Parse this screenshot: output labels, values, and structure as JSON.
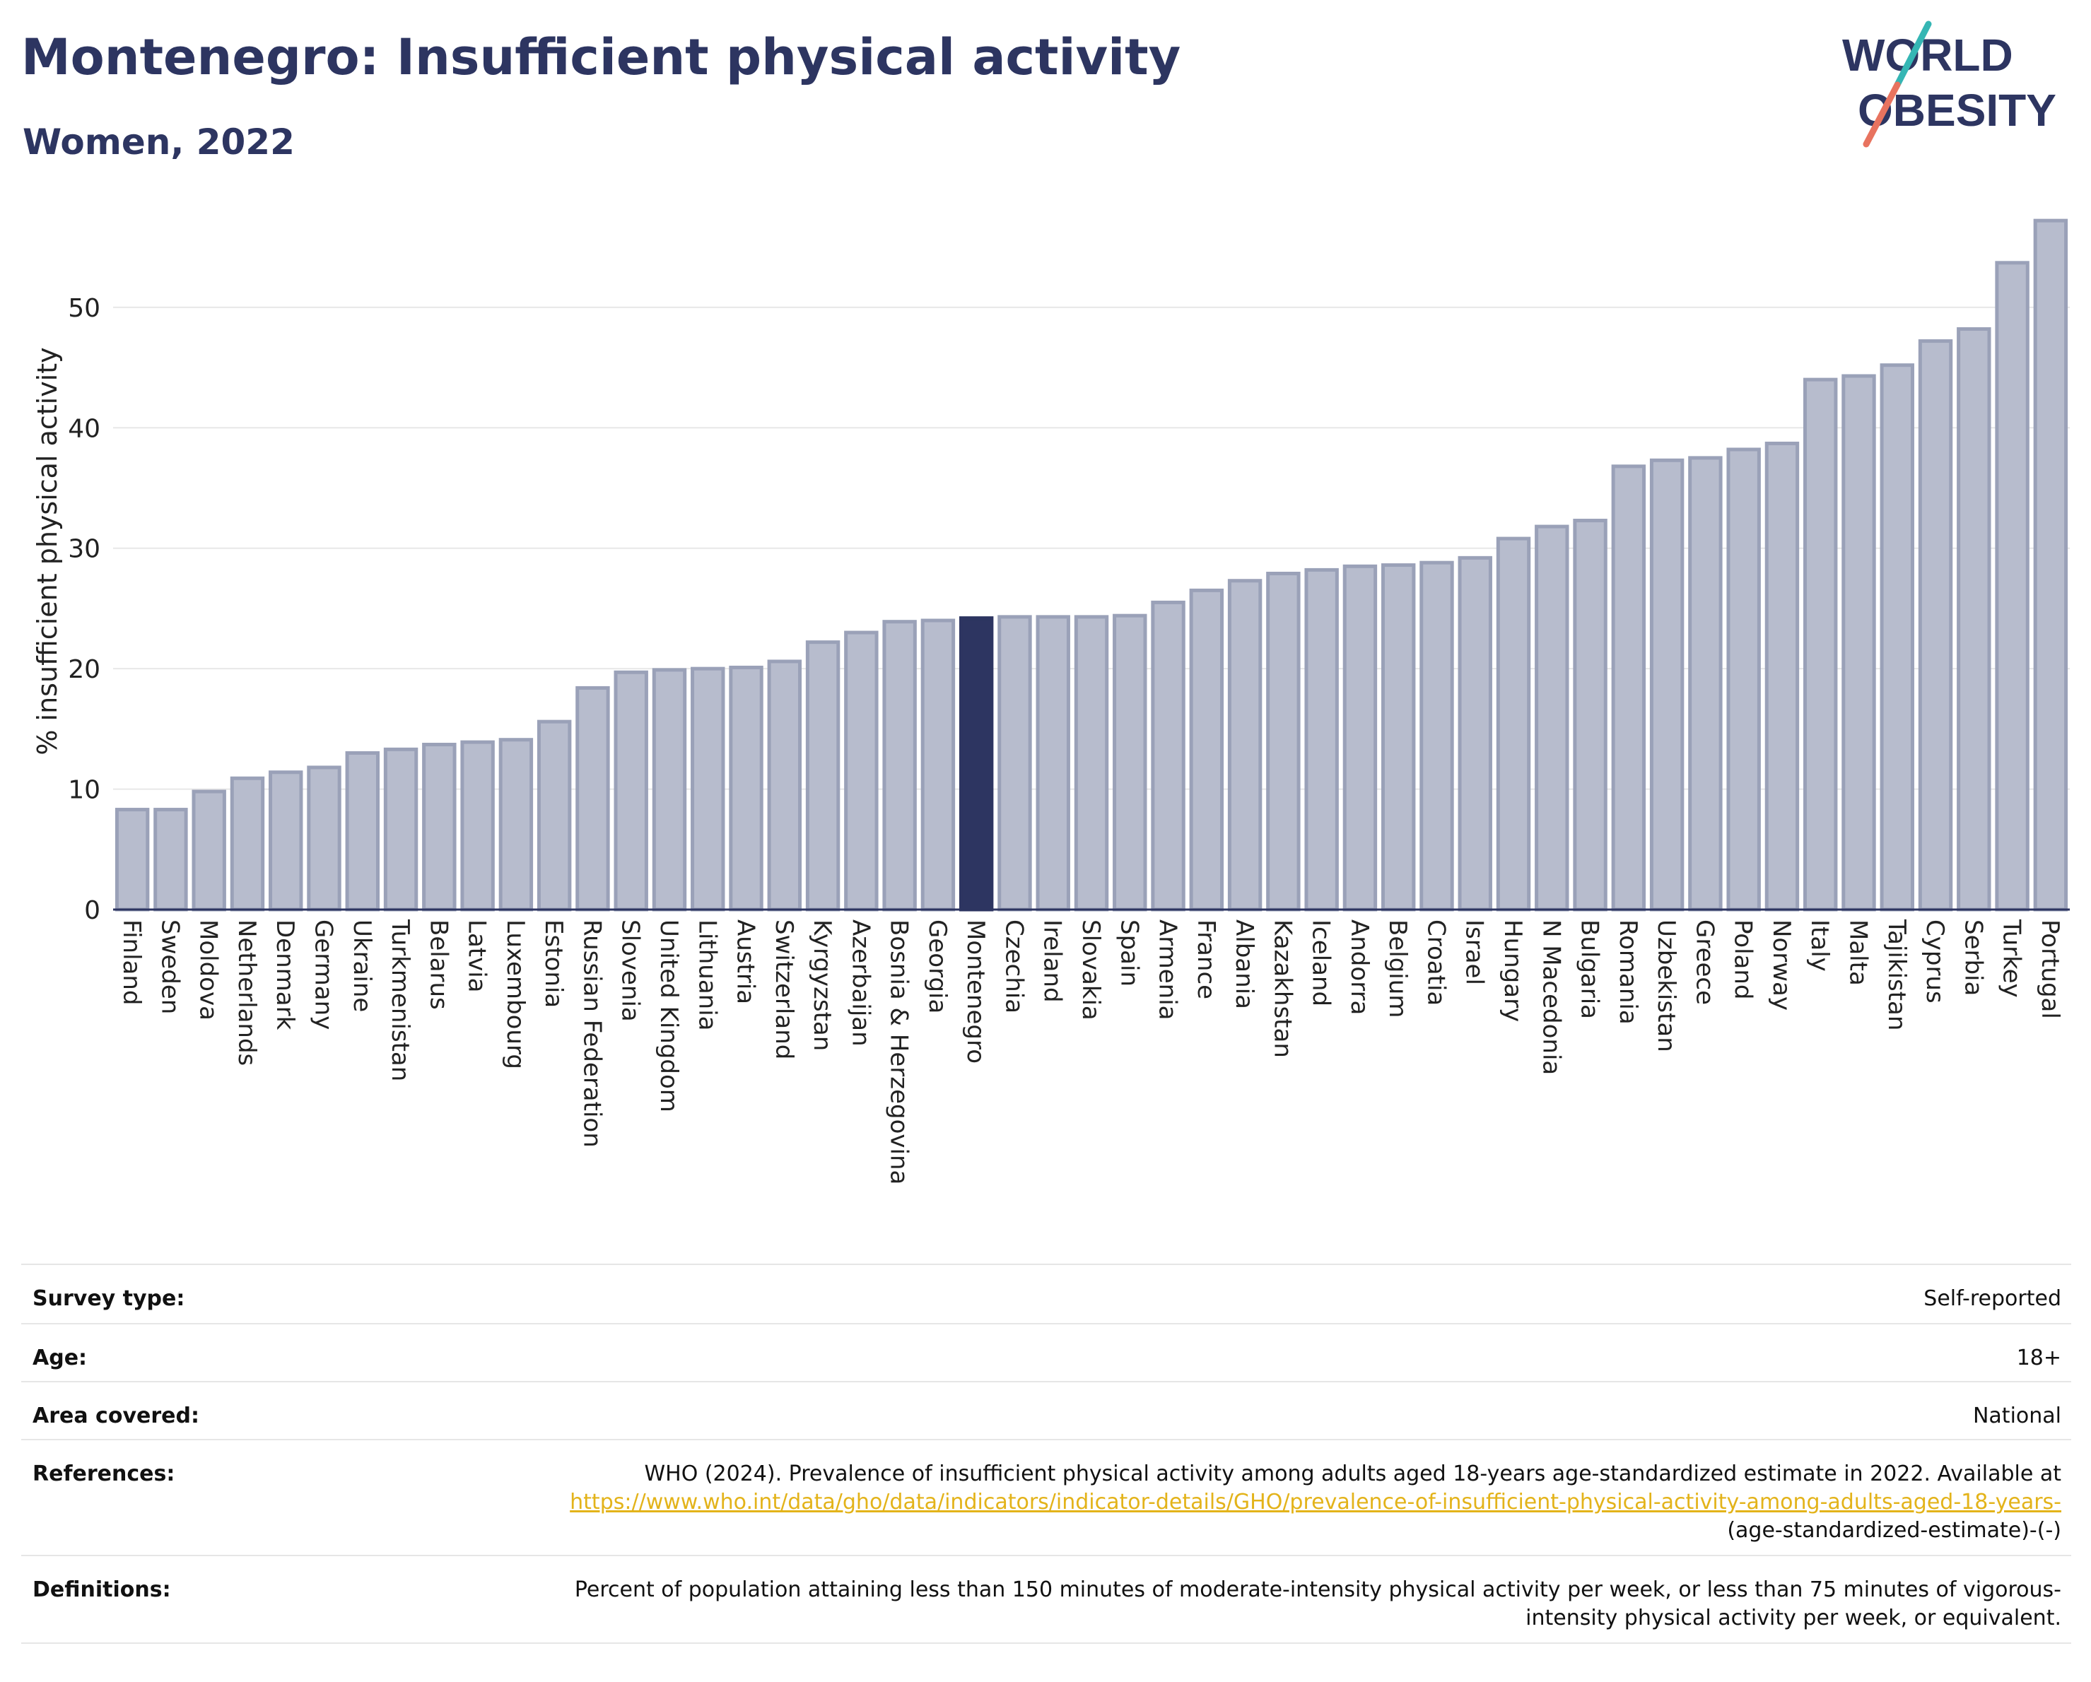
{
  "header": {
    "title": "Montenegro: Insufficient physical activity",
    "subtitle": "Women, 2022"
  },
  "logo": {
    "line1": "WORLD",
    "line2": "OBESITY"
  },
  "chart_data": {
    "type": "bar",
    "ylabel": "% insufficient physical activity",
    "xlabel": "",
    "ylim": [
      0,
      58.5
    ],
    "yticks": [
      0,
      10,
      20,
      30,
      40,
      50
    ],
    "grid": true,
    "highlight": "Montenegro",
    "colors": {
      "bar": "#b7bccd",
      "bar_edge": "#9aa1b8",
      "highlight": "#2d3561",
      "grid": "#e8e8e8",
      "axis": "#2d3561"
    },
    "categories": [
      "Finland",
      "Sweden",
      "Moldova",
      "Netherlands",
      "Denmark",
      "Germany",
      "Ukraine",
      "Turkmenistan",
      "Belarus",
      "Latvia",
      "Luxembourg",
      "Estonia",
      "Russian Federation",
      "Slovenia",
      "United Kingdom",
      "Lithuania",
      "Austria",
      "Switzerland",
      "Kyrgyzstan",
      "Azerbaijan",
      "Bosnia & Herzegovina",
      "Georgia",
      "Montenegro",
      "Czechia",
      "Ireland",
      "Slovakia",
      "Spain",
      "Armenia",
      "France",
      "Albania",
      "Kazakhstan",
      "Iceland",
      "Andorra",
      "Belgium",
      "Croatia",
      "Israel",
      "Hungary",
      "N Macedonia",
      "Bulgaria",
      "Romania",
      "Uzbekistan",
      "Greece",
      "Poland",
      "Norway",
      "Italy",
      "Malta",
      "Tajikistan",
      "Cyprus",
      "Serbia",
      "Turkey",
      "Portugal"
    ],
    "values": [
      8.3,
      8.3,
      9.8,
      10.9,
      11.4,
      11.8,
      13.0,
      13.3,
      13.7,
      13.9,
      14.1,
      15.6,
      18.4,
      19.7,
      19.9,
      20.0,
      20.1,
      20.6,
      22.2,
      23.0,
      23.9,
      24.0,
      24.2,
      24.3,
      24.3,
      24.3,
      24.4,
      25.5,
      26.5,
      27.3,
      27.9,
      28.2,
      28.5,
      28.6,
      28.8,
      29.2,
      30.8,
      31.8,
      32.3,
      36.8,
      37.3,
      37.5,
      38.2,
      38.7,
      44.0,
      44.3,
      45.2,
      47.2,
      48.2,
      53.7,
      57.2
    ]
  },
  "meta": {
    "survey_type_label": "Survey type:",
    "survey_type_value": "Self-reported",
    "age_label": "Age:",
    "age_value": "18+",
    "area_label": "Area covered:",
    "area_value": "National",
    "references_label": "References:",
    "references_text": "WHO (2024). Prevalence of insufficient physical activity among adults aged 18-years age-standardized estimate in 2022. Available at",
    "references_link": "https://www.who.int/data/gho/data/indicators/indicator-details/GHO/prevalence-of-insufficient-physical-activity-among-adults-aged-18-years-",
    "references_suffix": "(age-standardized-estimate)-(-)",
    "definitions_label": "Definitions:",
    "definitions_value": "Percent of population attaining less than 150 minutes of moderate-intensity physical activity per week, or less than 75 minutes of vigorous-intensity physical activity per week, or equivalent."
  }
}
